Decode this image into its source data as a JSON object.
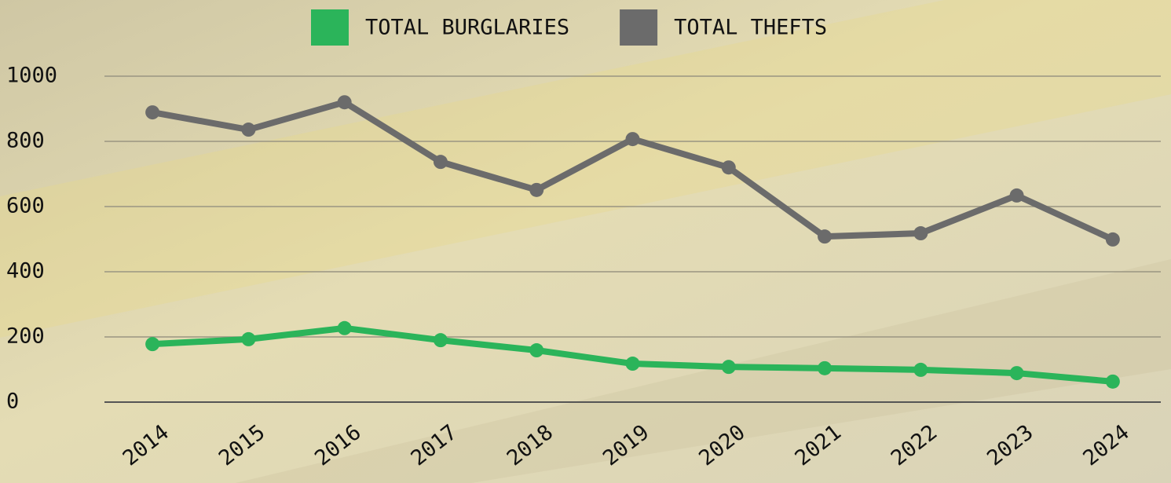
{
  "chart_data": {
    "type": "line",
    "categories": [
      "2014",
      "2015",
      "2016",
      "2017",
      "2018",
      "2019",
      "2020",
      "2021",
      "2022",
      "2023",
      "2024"
    ],
    "series": [
      {
        "name": "TOTAL BURGLARIES",
        "color": "#2bb45a",
        "values": [
          178,
          193,
          227,
          190,
          159,
          118,
          108,
          104,
          99,
          89,
          63
        ]
      },
      {
        "name": "TOTAL THEFTS",
        "color": "#6b6b6b",
        "values": [
          889,
          836,
          920,
          737,
          651,
          807,
          720,
          508,
          518,
          634,
          499
        ]
      }
    ],
    "ylim": [
      0,
      1000
    ],
    "yticks": [
      0,
      200,
      400,
      600,
      800,
      1000
    ],
    "grid": true,
    "legend": "top"
  }
}
